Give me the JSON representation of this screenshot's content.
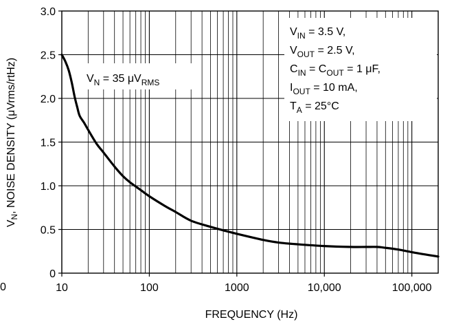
{
  "chart_data": {
    "type": "line",
    "xscale": "log",
    "xlim": [
      10,
      200000
    ],
    "ylim": [
      0,
      3.0
    ],
    "xlabel": "FREQUENCY (Hz)",
    "ylabel": {
      "main": "V",
      "sub": "N",
      "rest": ", NOISE DENSITY (μVrms/rtHz)"
    },
    "x_ticks": [
      {
        "value": 10,
        "label": "10"
      },
      {
        "value": 100,
        "label": "100"
      },
      {
        "value": 1000,
        "label": "1000"
      },
      {
        "value": 10000,
        "label": "10,000"
      },
      {
        "value": 100000,
        "label": "100,000"
      }
    ],
    "y_ticks": [
      {
        "value": 0,
        "label": "0"
      },
      {
        "value": 0.5,
        "label": "0.5"
      },
      {
        "value": 1.0,
        "label": "1.0"
      },
      {
        "value": 1.5,
        "label": "1.5"
      },
      {
        "value": 2.0,
        "label": "2.0"
      },
      {
        "value": 2.5,
        "label": "2.5"
      },
      {
        "value": 3.0,
        "label": "3.0"
      }
    ],
    "edge_label": "0",
    "grid": true,
    "series": [
      {
        "color": "#000000",
        "x": [
          10,
          11,
          12,
          13,
          14,
          15,
          16,
          18,
          20,
          25,
          30,
          40,
          50,
          60,
          80,
          100,
          150,
          200,
          300,
          500,
          700,
          1000,
          2000,
          3000,
          5000,
          10000,
          20000,
          30000,
          40000,
          50000,
          70000,
          100000,
          150000,
          200000
        ],
        "y": [
          2.5,
          2.42,
          2.32,
          2.18,
          2.02,
          1.9,
          1.8,
          1.72,
          1.64,
          1.48,
          1.38,
          1.22,
          1.11,
          1.04,
          0.95,
          0.88,
          0.77,
          0.7,
          0.6,
          0.53,
          0.49,
          0.45,
          0.38,
          0.35,
          0.33,
          0.31,
          0.3,
          0.3,
          0.3,
          0.29,
          0.27,
          0.24,
          0.21,
          0.19
        ]
      }
    ],
    "noise_label": {
      "v": "V",
      "v_sub": "N",
      "mid": " = 35 μV",
      "unit_sub": "RMS"
    },
    "conditions": [
      {
        "main": "V",
        "sub": "IN",
        "rest": " = 3.5 V,"
      },
      {
        "main": "V",
        "sub": "OUT",
        "rest": " = 2.5 V,"
      },
      {
        "main": "C",
        "sub": "IN",
        "mid": " = C",
        "sub2": "OUT",
        "rest": " = 1 μF,"
      },
      {
        "main": "I",
        "sub": "OUT",
        "rest": " = 10 mA,"
      },
      {
        "main": "T",
        "sub": "A",
        "rest": " = 25°C"
      }
    ]
  }
}
